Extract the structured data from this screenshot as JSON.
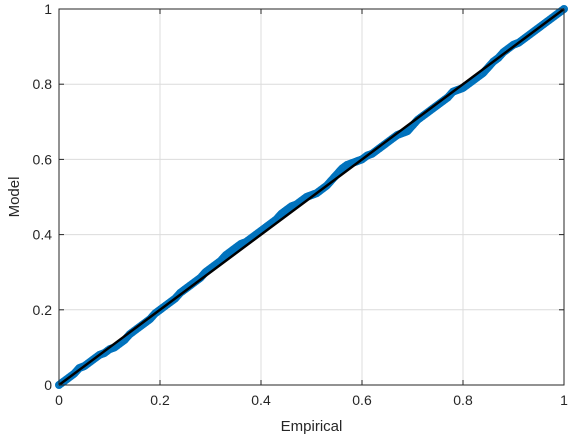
{
  "chart_data": {
    "type": "scatter",
    "title": "",
    "xlabel": "Empirical",
    "ylabel": "Model",
    "xlim": [
      0,
      1
    ],
    "ylim": [
      0,
      1
    ],
    "grid": true,
    "xticks": [
      0,
      0.2,
      0.4,
      0.6,
      0.8,
      1
    ],
    "yticks": [
      0,
      0.2,
      0.4,
      0.6,
      0.8,
      1
    ],
    "xtick_labels": [
      "0",
      "0.2",
      "0.4",
      "0.6",
      "0.8",
      "1"
    ],
    "ytick_labels": [
      "0",
      "0.2",
      "0.4",
      "0.6",
      "0.8",
      "1"
    ],
    "series": [
      {
        "kind": "scatter",
        "color": "#0072BD",
        "marker": "circle-open",
        "points": [
          [
            0.0,
            0.0
          ],
          [
            0.01,
            0.01
          ],
          [
            0.02,
            0.02
          ],
          [
            0.03,
            0.03
          ],
          [
            0.04,
            0.045
          ],
          [
            0.05,
            0.05
          ],
          [
            0.06,
            0.06
          ],
          [
            0.07,
            0.07
          ],
          [
            0.08,
            0.08
          ],
          [
            0.09,
            0.085
          ],
          [
            0.1,
            0.095
          ],
          [
            0.11,
            0.1
          ],
          [
            0.12,
            0.11
          ],
          [
            0.13,
            0.12
          ],
          [
            0.14,
            0.135
          ],
          [
            0.15,
            0.145
          ],
          [
            0.16,
            0.155
          ],
          [
            0.17,
            0.165
          ],
          [
            0.18,
            0.175
          ],
          [
            0.19,
            0.19
          ],
          [
            0.2,
            0.2
          ],
          [
            0.21,
            0.21
          ],
          [
            0.22,
            0.22
          ],
          [
            0.23,
            0.23
          ],
          [
            0.24,
            0.245
          ],
          [
            0.25,
            0.255
          ],
          [
            0.26,
            0.265
          ],
          [
            0.27,
            0.275
          ],
          [
            0.28,
            0.285
          ],
          [
            0.29,
            0.3
          ],
          [
            0.3,
            0.31
          ],
          [
            0.31,
            0.32
          ],
          [
            0.32,
            0.33
          ],
          [
            0.33,
            0.345
          ],
          [
            0.34,
            0.355
          ],
          [
            0.35,
            0.365
          ],
          [
            0.36,
            0.375
          ],
          [
            0.37,
            0.38
          ],
          [
            0.38,
            0.39
          ],
          [
            0.39,
            0.4
          ],
          [
            0.4,
            0.41
          ],
          [
            0.41,
            0.42
          ],
          [
            0.42,
            0.43
          ],
          [
            0.43,
            0.44
          ],
          [
            0.44,
            0.455
          ],
          [
            0.45,
            0.465
          ],
          [
            0.46,
            0.475
          ],
          [
            0.47,
            0.48
          ],
          [
            0.48,
            0.49
          ],
          [
            0.49,
            0.5
          ],
          [
            0.5,
            0.505
          ],
          [
            0.51,
            0.51
          ],
          [
            0.52,
            0.52
          ],
          [
            0.53,
            0.53
          ],
          [
            0.54,
            0.545
          ],
          [
            0.55,
            0.56
          ],
          [
            0.56,
            0.575
          ],
          [
            0.57,
            0.585
          ],
          [
            0.58,
            0.59
          ],
          [
            0.59,
            0.595
          ],
          [
            0.6,
            0.6
          ],
          [
            0.61,
            0.61
          ],
          [
            0.62,
            0.615
          ],
          [
            0.63,
            0.625
          ],
          [
            0.64,
            0.635
          ],
          [
            0.65,
            0.645
          ],
          [
            0.66,
            0.655
          ],
          [
            0.67,
            0.665
          ],
          [
            0.68,
            0.67
          ],
          [
            0.69,
            0.675
          ],
          [
            0.7,
            0.69
          ],
          [
            0.71,
            0.705
          ],
          [
            0.72,
            0.715
          ],
          [
            0.73,
            0.725
          ],
          [
            0.74,
            0.735
          ],
          [
            0.75,
            0.745
          ],
          [
            0.76,
            0.755
          ],
          [
            0.77,
            0.765
          ],
          [
            0.78,
            0.78
          ],
          [
            0.79,
            0.785
          ],
          [
            0.8,
            0.79
          ],
          [
            0.81,
            0.8
          ],
          [
            0.82,
            0.81
          ],
          [
            0.83,
            0.82
          ],
          [
            0.84,
            0.83
          ],
          [
            0.85,
            0.845
          ],
          [
            0.86,
            0.86
          ],
          [
            0.87,
            0.87
          ],
          [
            0.88,
            0.885
          ],
          [
            0.89,
            0.895
          ],
          [
            0.9,
            0.905
          ],
          [
            0.91,
            0.91
          ],
          [
            0.92,
            0.92
          ],
          [
            0.93,
            0.93
          ],
          [
            0.94,
            0.94
          ],
          [
            0.95,
            0.95
          ],
          [
            0.96,
            0.96
          ],
          [
            0.97,
            0.97
          ],
          [
            0.98,
            0.98
          ],
          [
            0.99,
            0.99
          ],
          [
            1.0,
            1.0
          ]
        ]
      },
      {
        "kind": "line",
        "color": "#000000",
        "points": [
          [
            0,
            0
          ],
          [
            1,
            1
          ]
        ]
      }
    ]
  }
}
